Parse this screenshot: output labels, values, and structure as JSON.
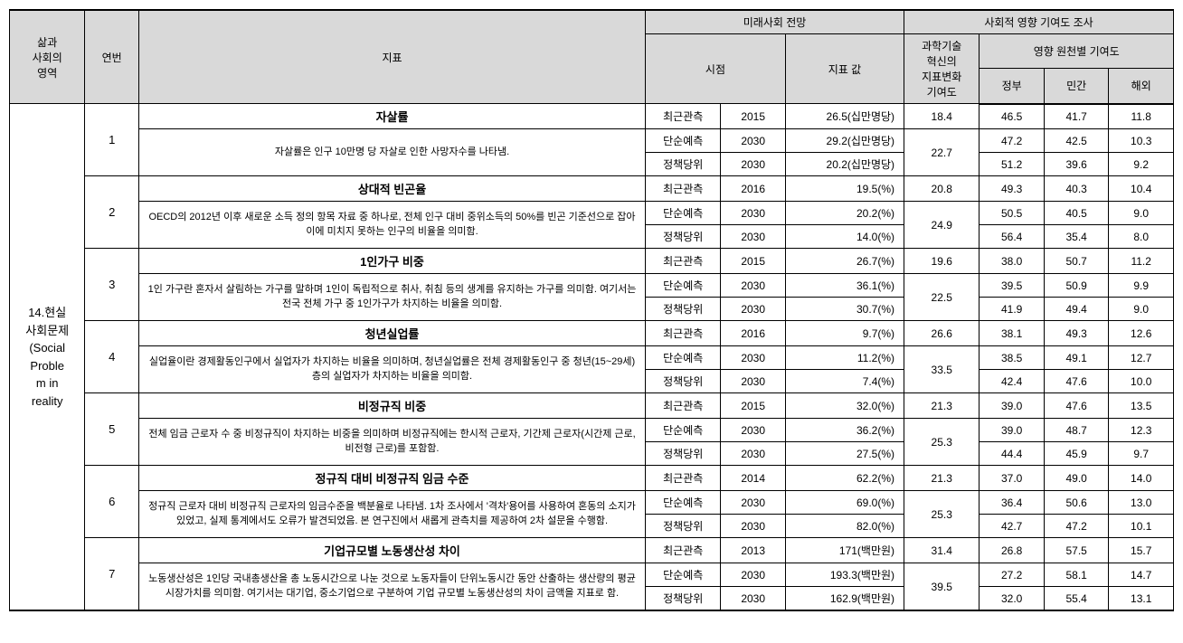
{
  "header": {
    "domain": "삶과\n사회의\n영역",
    "idx": "연번",
    "indicator": "지표",
    "future_group": "미래사회 전망",
    "point": "시점",
    "value": "지표 값",
    "social_group": "사회적 영향 기여도 조사",
    "sti": "과학기술\n혁신의\n지표변화\n기여도",
    "source_group": "영향 원천별 기여도",
    "gov": "정부",
    "priv": "민간",
    "overseas": "해외"
  },
  "domain": "14.현실\n사회문제\n(Social\nProble\nm in\nreality",
  "rows": [
    {
      "idx": "1",
      "title": "자살률",
      "desc": "자살률은 인구 10만명 당 자살로 인한 사망자수를 나타냄.",
      "obs": [
        "최근관측",
        "2015",
        "26.5(십만명당)",
        "18.4",
        "46.5",
        "41.7",
        "11.8"
      ],
      "pred": [
        "단순예측",
        "2030",
        "29.2(십만명당)",
        "22.7",
        "47.2",
        "42.5",
        "10.3"
      ],
      "pol": [
        "정책당위",
        "2030",
        "20.2(십만명당)",
        "",
        "51.2",
        "39.6",
        "9.2"
      ]
    },
    {
      "idx": "2",
      "title": "상대적 빈곤율",
      "desc": "OECD의 2012년 이후 새로운 소득 정의 항목 자료 중 하나로, 전체 인구 대비 중위소득의 50%를 빈곤 기준선으로 잡아 이에 미치지 못하는 인구의 비율을 의미함.",
      "obs": [
        "최근관측",
        "2016",
        "19.5(%)",
        "20.8",
        "49.3",
        "40.3",
        "10.4"
      ],
      "pred": [
        "단순예측",
        "2030",
        "20.2(%)",
        "24.9",
        "50.5",
        "40.5",
        "9.0"
      ],
      "pol": [
        "정책당위",
        "2030",
        "14.0(%)",
        "",
        "56.4",
        "35.4",
        "8.0"
      ]
    },
    {
      "idx": "3",
      "title": "1인가구 비중",
      "desc": "1인 가구란 혼자서 살림하는 가구를 말하며 1인이 독립적으로 취사, 취침 등의 생계를 유지하는 가구를 의미함. 여기서는 전국 전체 가구 중 1인가구가 차지하는 비율을 의미함.",
      "obs": [
        "최근관측",
        "2015",
        "26.7(%)",
        "19.6",
        "38.0",
        "50.7",
        "11.2"
      ],
      "pred": [
        "단순예측",
        "2030",
        "36.1(%)",
        "22.5",
        "39.5",
        "50.9",
        "9.9"
      ],
      "pol": [
        "정책당위",
        "2030",
        "30.7(%)",
        "",
        "41.9",
        "49.4",
        "9.0"
      ]
    },
    {
      "idx": "4",
      "title": "청년실업률",
      "desc": "실업율이란 경제활동인구에서 실업자가 차지하는 비율을 의미하며, 청년실업률은 전체 경제활동인구 중 청년(15~29세) 층의 실업자가 차지하는 비율을 의미함.",
      "obs": [
        "최근관측",
        "2016",
        "9.7(%)",
        "26.6",
        "38.1",
        "49.3",
        "12.6"
      ],
      "pred": [
        "단순예측",
        "2030",
        "11.2(%)",
        "33.5",
        "38.5",
        "49.1",
        "12.7"
      ],
      "pol": [
        "정책당위",
        "2030",
        "7.4(%)",
        "",
        "42.4",
        "47.6",
        "10.0"
      ]
    },
    {
      "idx": "5",
      "title": "비정규직 비중",
      "desc": "전체 임금 근로자 수 중 비정규직이 차지하는 비중을 의미하며 비정규직에는 한시적 근로자, 기간제 근로자(시간제 근로, 비전형 근로)를 포함함.",
      "obs": [
        "최근관측",
        "2015",
        "32.0(%)",
        "21.3",
        "39.0",
        "47.6",
        "13.5"
      ],
      "pred": [
        "단순예측",
        "2030",
        "36.2(%)",
        "25.3",
        "39.0",
        "48.7",
        "12.3"
      ],
      "pol": [
        "정책당위",
        "2030",
        "27.5(%)",
        "",
        "44.4",
        "45.9",
        "9.7"
      ]
    },
    {
      "idx": "6",
      "title": "정규직 대비 비정규직 임금 수준",
      "desc": "정규직 근로자 대비 비정규직 근로자의 임금수준을 백분율로 나타냄. 1차 조사에서 '격차'용어를 사용하여 혼동의 소지가 있었고, 실제 통계에서도 오류가 발견되었음. 본 연구진에서 새롭게 관측치를 제공하여 2차 설문을 수행함.",
      "obs": [
        "최근관측",
        "2014",
        "62.2(%)",
        "21.3",
        "37.0",
        "49.0",
        "14.0"
      ],
      "pred": [
        "단순예측",
        "2030",
        "69.0(%)",
        "25.3",
        "36.4",
        "50.6",
        "13.0"
      ],
      "pol": [
        "정책당위",
        "2030",
        "82.0(%)",
        "",
        "42.7",
        "47.2",
        "10.1"
      ]
    },
    {
      "idx": "7",
      "title": "기업규모별 노동생산성 차이",
      "desc": "노동생산성은 1인당 국내총생산을 총 노동시간으로 나눈 것으로 노동자들이 단위노동시간 동안 산출하는 생산량의 평균 시장가치를 의미함. 여기서는 대기업, 중소기업으로 구분하여 기업 규모별 노동생산성의 차이 금액을 지표로 함.",
      "obs": [
        "최근관측",
        "2013",
        "171(백만원)",
        "31.4",
        "26.8",
        "57.5",
        "15.7"
      ],
      "pred": [
        "단순예측",
        "2030",
        "193.3(백만원)",
        "39.5",
        "27.2",
        "58.1",
        "14.7"
      ],
      "pol": [
        "정책당위",
        "2030",
        "162.9(백만원)",
        "",
        "32.0",
        "55.4",
        "13.1"
      ]
    }
  ]
}
